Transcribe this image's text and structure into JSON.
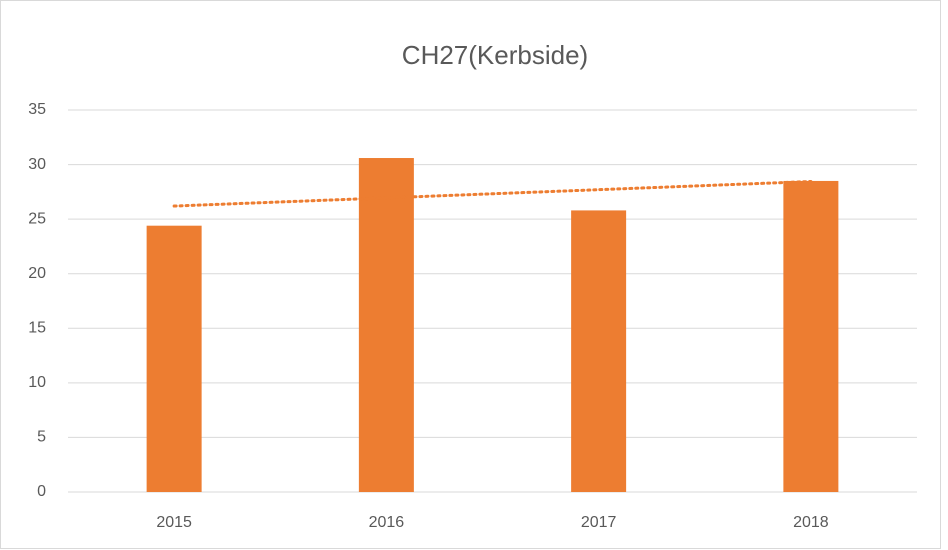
{
  "chart_data": {
    "type": "bar",
    "title": "CH27(Kerbside)",
    "categories": [
      "2015",
      "2016",
      "2017",
      "2018"
    ],
    "values": [
      24.4,
      30.6,
      25.8,
      28.5
    ],
    "color": "#ed7d31",
    "ylim": [
      0,
      35
    ],
    "yticks": [
      0,
      5,
      10,
      15,
      20,
      25,
      30,
      35
    ],
    "grid": true,
    "trendline": "linear"
  }
}
